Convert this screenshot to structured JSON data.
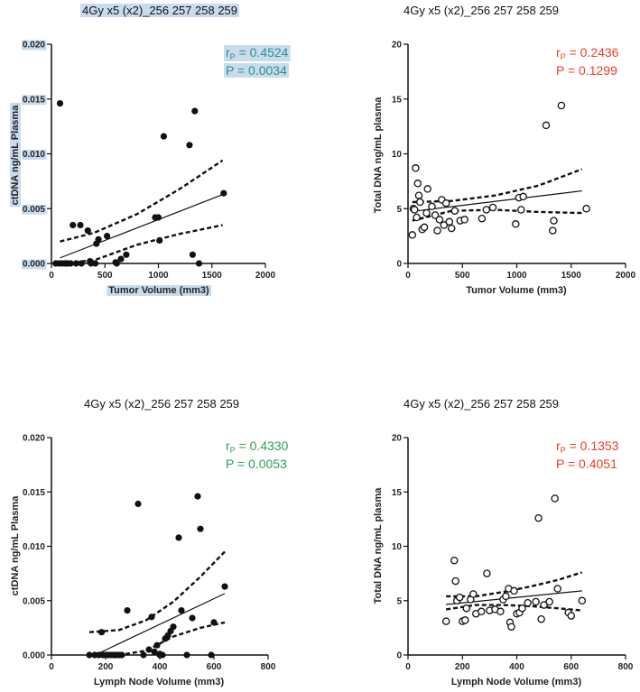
{
  "colors": {
    "green": "#2e9e5e",
    "red": "#f03c28",
    "teal": "#2a8f8a",
    "highlight": "#c9dcee",
    "ink": "#111111"
  },
  "chart_data": [
    {
      "type": "scatter",
      "title": "4Gy x5 (x2)_256 257 258 259",
      "xlabel": "Tumor Volume (mm3)",
      "ylabel": "ctDNA ng/mL Plasma",
      "xlim": [
        0,
        2000
      ],
      "ylim": [
        0,
        0.02
      ],
      "xticks": [
        "0",
        "500",
        "1000",
        "1500",
        "2000"
      ],
      "yticks": [
        "0.000",
        "0.005",
        "0.010",
        "0.015",
        "0.020"
      ],
      "r_label": "r",
      "r_sub": "P",
      "r_value": "= 0.4524",
      "p_value": "P = 0.0034",
      "stats_color": "#2a8f8a",
      "marker": "filled",
      "highlighted": true,
      "fit": {
        "slope": 3.8e-06,
        "intercept": 0.0002
      },
      "ci_upper": [
        [
          80,
          0.002
        ],
        [
          400,
          0.0028
        ],
        [
          800,
          0.0045
        ],
        [
          1200,
          0.0068
        ],
        [
          1600,
          0.0094
        ]
      ],
      "ci_lower": [
        [
          80,
          -0.0011
        ],
        [
          400,
          0.0003
        ],
        [
          800,
          0.0017
        ],
        [
          1200,
          0.0027
        ],
        [
          1600,
          0.0035
        ]
      ],
      "points": [
        [
          80,
          0.0146
        ],
        [
          40,
          0
        ],
        [
          70,
          0
        ],
        [
          100,
          0
        ],
        [
          130,
          0
        ],
        [
          150,
          0
        ],
        [
          180,
          0
        ],
        [
          200,
          0.0035
        ],
        [
          230,
          0
        ],
        [
          270,
          0.0035
        ],
        [
          280,
          0
        ],
        [
          340,
          0.003
        ],
        [
          370,
          0
        ],
        [
          360,
          0.0002
        ],
        [
          410,
          0
        ],
        [
          420,
          0.0018
        ],
        [
          440,
          0.0022
        ],
        [
          520,
          0.0025
        ],
        [
          600,
          0.0001
        ],
        [
          610,
          0
        ],
        [
          650,
          0.0004
        ],
        [
          700,
          0.0008
        ],
        [
          970,
          0.0042
        ],
        [
          1000,
          0.0042
        ],
        [
          1010,
          0.0021
        ],
        [
          1050,
          0.0116
        ],
        [
          1290,
          0.0108
        ],
        [
          1320,
          0.0008
        ],
        [
          1340,
          0.0139
        ],
        [
          1380,
          0
        ],
        [
          1610,
          0.0064
        ]
      ]
    },
    {
      "type": "scatter",
      "title": "4Gy x5 (x2)_256 257 258 259",
      "xlabel": "Tumor Volume (mm3)",
      "ylabel": "Total DNA ng/mL plasma",
      "xlim": [
        0,
        2000
      ],
      "ylim": [
        0,
        20
      ],
      "xticks": [
        "0",
        "500",
        "1000",
        "1500",
        "2000"
      ],
      "yticks": [
        "0",
        "5",
        "10",
        "15",
        "20"
      ],
      "r_label": "r",
      "r_sub": "P",
      "r_value": "= 0.2436",
      "p_value": "P = 0.1299",
      "stats_color": "#f03c28",
      "marker": "open",
      "highlighted": false,
      "fit": {
        "slope": 0.0012,
        "intercept": 4.7
      },
      "ci_upper": [
        [
          40,
          5.6
        ],
        [
          400,
          5.7
        ],
        [
          800,
          6.2
        ],
        [
          1200,
          7.1
        ],
        [
          1600,
          8.6
        ]
      ],
      "ci_lower": [
        [
          40,
          3.9
        ],
        [
          400,
          4.8
        ],
        [
          800,
          4.9
        ],
        [
          1200,
          4.7
        ],
        [
          1600,
          4.6
        ]
      ],
      "points": [
        [
          40,
          2.6
        ],
        [
          50,
          5.0
        ],
        [
          60,
          4.9
        ],
        [
          70,
          8.7
        ],
        [
          80,
          4.2
        ],
        [
          90,
          7.3
        ],
        [
          100,
          6.2
        ],
        [
          110,
          5.6
        ],
        [
          130,
          3.1
        ],
        [
          150,
          3.3
        ],
        [
          170,
          4.6
        ],
        [
          180,
          6.8
        ],
        [
          220,
          5.2
        ],
        [
          250,
          4.4
        ],
        [
          270,
          3.0
        ],
        [
          290,
          4.0
        ],
        [
          310,
          5.8
        ],
        [
          330,
          3.5
        ],
        [
          350,
          5.5
        ],
        [
          380,
          3.8
        ],
        [
          400,
          3.2
        ],
        [
          430,
          4.8
        ],
        [
          480,
          3.9
        ],
        [
          520,
          4.0
        ],
        [
          680,
          4.1
        ],
        [
          720,
          4.9
        ],
        [
          780,
          5.1
        ],
        [
          990,
          3.6
        ],
        [
          1020,
          6.0
        ],
        [
          1040,
          4.9
        ],
        [
          1060,
          6.1
        ],
        [
          1270,
          12.6
        ],
        [
          1330,
          3.0
        ],
        [
          1340,
          3.9
        ],
        [
          1410,
          14.4
        ],
        [
          1640,
          5.0
        ]
      ]
    },
    {
      "type": "scatter",
      "title": "4Gy x5 (x2)_256 257 258 259",
      "xlabel": "Lymph Node Volume (mm3)",
      "ylabel": "ctDNA ng/mL Plasma",
      "xlim": [
        0,
        800
      ],
      "ylim": [
        0,
        0.02
      ],
      "xticks": [
        "0",
        "200",
        "400",
        "600",
        "800"
      ],
      "yticks": [
        "0.000",
        "0.005",
        "0.010",
        "0.015",
        "0.020"
      ],
      "r_label": "r",
      "r_sub": "P",
      "r_value": "= 0.4330",
      "p_value": "P = 0.0053",
      "stats_color": "#2e9e5e",
      "marker": "filled",
      "highlighted": false,
      "fit": {
        "slope": 1.18e-05,
        "intercept": -0.0019
      },
      "ci_upper": [
        [
          140,
          0.0021
        ],
        [
          250,
          0.0023
        ],
        [
          350,
          0.0032
        ],
        [
          450,
          0.0049
        ],
        [
          550,
          0.0072
        ],
        [
          640,
          0.0095
        ]
      ],
      "ci_lower": [
        [
          140,
          -0.0034
        ],
        [
          250,
          -0.0014
        ],
        [
          350,
          0.0004
        ],
        [
          450,
          0.0017
        ],
        [
          550,
          0.0025
        ],
        [
          640,
          0.003
        ]
      ],
      "points": [
        [
          140,
          0
        ],
        [
          160,
          0
        ],
        [
          175,
          0
        ],
        [
          185,
          0.0021
        ],
        [
          190,
          0
        ],
        [
          200,
          0
        ],
        [
          210,
          0
        ],
        [
          220,
          0
        ],
        [
          230,
          0
        ],
        [
          240,
          0
        ],
        [
          250,
          0
        ],
        [
          260,
          0
        ],
        [
          280,
          0.0041
        ],
        [
          320,
          0.0139
        ],
        [
          340,
          0
        ],
        [
          360,
          0.0005
        ],
        [
          370,
          0.0035
        ],
        [
          380,
          0.0003
        ],
        [
          390,
          0.0009
        ],
        [
          400,
          0.0001
        ],
        [
          400,
          0
        ],
        [
          410,
          0
        ],
        [
          420,
          0.0015
        ],
        [
          430,
          0.0018
        ],
        [
          440,
          0.0022
        ],
        [
          450,
          0.0026
        ],
        [
          470,
          0.0108
        ],
        [
          480,
          0.0041
        ],
        [
          500,
          0
        ],
        [
          520,
          0.0034
        ],
        [
          540,
          0.0146
        ],
        [
          550,
          0.0116
        ],
        [
          590,
          0
        ],
        [
          600,
          0.003
        ],
        [
          640,
          0.0063
        ]
      ]
    },
    {
      "type": "scatter",
      "title": "4Gy x5 (x2)_256 257 258 259",
      "xlabel": "Lymph Node Volume (mm3)",
      "ylabel": "Total DNA ng/mL plasma",
      "xlim": [
        0,
        800
      ],
      "ylim": [
        0,
        20
      ],
      "xticks": [
        "0",
        "200",
        "400",
        "600",
        "800"
      ],
      "yticks": [
        "0",
        "5",
        "10",
        "15",
        "20"
      ],
      "r_label": "r",
      "r_sub": "P",
      "r_value": "= 0.1353",
      "p_value": "P = 0.4051",
      "stats_color": "#f03c28",
      "marker": "open",
      "highlighted": false,
      "fit": {
        "slope": 0.0025,
        "intercept": 4.3
      },
      "ci_upper": [
        [
          140,
          5.4
        ],
        [
          250,
          5.4
        ],
        [
          350,
          5.8
        ],
        [
          450,
          6.3
        ],
        [
          550,
          6.9
        ],
        [
          640,
          7.6
        ]
      ],
      "ci_lower": [
        [
          140,
          4.2
        ],
        [
          250,
          4.6
        ],
        [
          350,
          4.6
        ],
        [
          450,
          4.5
        ],
        [
          550,
          4.3
        ],
        [
          640,
          4.1
        ]
      ],
      "points": [
        [
          140,
          3.1
        ],
        [
          170,
          8.7
        ],
        [
          175,
          6.8
        ],
        [
          180,
          5.0
        ],
        [
          190,
          5.3
        ],
        [
          200,
          3.1
        ],
        [
          210,
          3.2
        ],
        [
          215,
          4.3
        ],
        [
          230,
          5.1
        ],
        [
          240,
          5.6
        ],
        [
          250,
          3.8
        ],
        [
          270,
          4.0
        ],
        [
          290,
          7.5
        ],
        [
          300,
          4.1
        ],
        [
          320,
          4.2
        ],
        [
          340,
          4.0
        ],
        [
          350,
          5.1
        ],
        [
          360,
          5.4
        ],
        [
          370,
          6.1
        ],
        [
          375,
          3.0
        ],
        [
          380,
          2.6
        ],
        [
          390,
          5.9
        ],
        [
          400,
          3.8
        ],
        [
          410,
          3.9
        ],
        [
          420,
          4.3
        ],
        [
          440,
          4.8
        ],
        [
          470,
          4.9
        ],
        [
          480,
          12.6
        ],
        [
          490,
          3.3
        ],
        [
          500,
          4.6
        ],
        [
          520,
          4.9
        ],
        [
          540,
          14.4
        ],
        [
          550,
          6.1
        ],
        [
          590,
          3.9
        ],
        [
          600,
          3.6
        ],
        [
          640,
          5.0
        ]
      ]
    }
  ]
}
